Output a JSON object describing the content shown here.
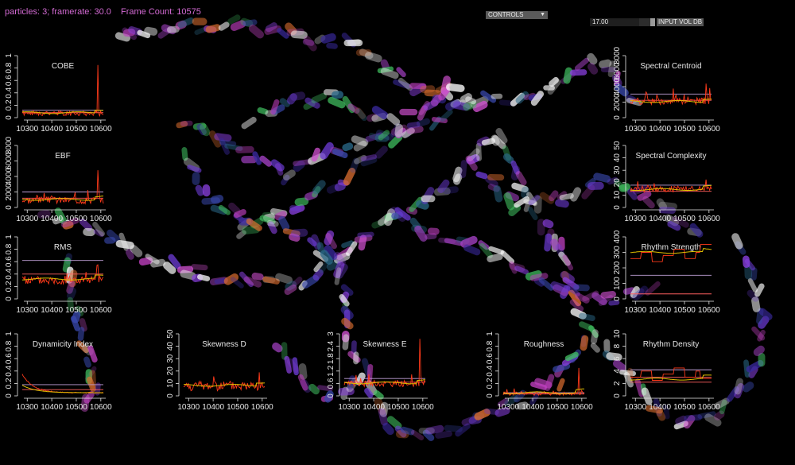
{
  "hud": {
    "particles": "particles: 3; framerate: 30.0",
    "frame_count": "Frame Count: 10575"
  },
  "controls": {
    "label": "CONTROLS"
  },
  "input_vol": {
    "value": "17.00",
    "label": "INPUT VOL DB",
    "level": 0.75
  },
  "colors": {
    "signal": "#ff3a1a",
    "smooth": "#e0c000",
    "threshold_a": "#c0a0d8",
    "threshold_b": "#ff6060",
    "axis": "#e8e8e8",
    "hud_text": "#d36ad3"
  },
  "plots": [
    {
      "id": "cobe",
      "title": "COBE",
      "x": 35,
      "y": 70,
      "ylim": [
        0,
        1
      ],
      "yticks": [
        "0",
        "0.2",
        "0.4",
        "0.6",
        "0.8",
        "1"
      ],
      "xticks": [
        "10300",
        "10400",
        "10500",
        "10600"
      ],
      "xrange": [
        10270,
        10620
      ],
      "lines": [
        0.12,
        0.08
      ],
      "base": 0.07,
      "noise": 0.04,
      "spike": 0.85,
      "smooth_base": 0.08,
      "seed": 1
    },
    {
      "id": "spectral-centroid",
      "title": "Spectral Centroid",
      "x": 800,
      "y": 70,
      "ylim": [
        0,
        8000
      ],
      "yticks": [
        "0",
        "2000",
        "4000",
        "6000",
        "8000"
      ],
      "xticks": [
        "10300",
        "10400",
        "10500",
        "10600"
      ],
      "xrange": [
        10270,
        10620
      ],
      "lines": [
        0.38,
        0.28
      ],
      "base": 0.27,
      "noise": 0.06,
      "spike": 0.55,
      "smooth_base": 0.26,
      "seed": 2
    },
    {
      "id": "ebf",
      "title": "EBF",
      "x": 35,
      "y": 183,
      "ylim": [
        0,
        8000
      ],
      "yticks": [
        "0",
        "2000",
        "4000",
        "6000",
        "8000"
      ],
      "xticks": [
        "10300",
        "10400",
        "10500",
        "10600"
      ],
      "xrange": [
        10270,
        10620
      ],
      "lines": [
        0.25,
        0.15
      ],
      "base": 0.12,
      "noise": 0.06,
      "spike": 0.6,
      "smooth_base": 0.13,
      "seed": 3
    },
    {
      "id": "spectral-complexity",
      "title": "Spectral Complexity",
      "x": 800,
      "y": 183,
      "ylim": [
        0,
        50
      ],
      "yticks": [
        "0",
        "10",
        "20",
        "30",
        "40",
        "50"
      ],
      "xticks": [
        "10300",
        "10400",
        "10500",
        "10600"
      ],
      "xrange": [
        10270,
        10620
      ],
      "lines": [
        0.36,
        0.26
      ],
      "base": 0.3,
      "noise": 0.05,
      "spike": 0.45,
      "smooth_base": 0.29,
      "seed": 4
    },
    {
      "id": "rms",
      "title": "RMS",
      "x": 35,
      "y": 298,
      "ylim": [
        0,
        1
      ],
      "yticks": [
        "0",
        "0.2",
        "0.4",
        "0.6",
        "0.8",
        "1"
      ],
      "xticks": [
        "10300",
        "10400",
        "10500",
        "10600"
      ],
      "xrange": [
        10270,
        10620
      ],
      "lines": [
        0.62,
        0.4
      ],
      "base": 0.3,
      "noise": 0.07,
      "spike": 0.55,
      "smooth_base": 0.32,
      "seed": 5
    },
    {
      "id": "rhythm-strength",
      "title": "Rhythm Strength",
      "x": 800,
      "y": 298,
      "ylim": [
        0,
        400
      ],
      "yticks": [
        "0",
        "100",
        "200",
        "300",
        "400"
      ],
      "xticks": [
        "10300",
        "10400",
        "10500",
        "10600"
      ],
      "xrange": [
        10270,
        10620
      ],
      "lines": [
        0.38,
        0.08
      ],
      "base": 0.6,
      "noise": 0.0,
      "spike": 0.88,
      "smooth_base": 0.75,
      "seed": 6,
      "step": true
    },
    {
      "id": "dynamicity-index",
      "title": "Dynamicity Index",
      "x": 35,
      "y": 420,
      "ylim": [
        0,
        1
      ],
      "yticks": [
        "0",
        "0.2",
        "0.4",
        "0.6",
        "0.8",
        "1"
      ],
      "xticks": [
        "10300",
        "10400",
        "10500",
        "10600"
      ],
      "xrange": [
        10270,
        10620
      ],
      "lines": [
        0.18,
        0.1
      ],
      "base": 0.05,
      "noise": 0.015,
      "spike": 0.3,
      "smooth_base": 0.05,
      "seed": 7,
      "decay": true
    },
    {
      "id": "skewness-d",
      "title": "Skewness D",
      "x": 238,
      "y": 420,
      "ylim": [
        0,
        50
      ],
      "yticks": [
        "0",
        "10",
        "20",
        "30",
        "40",
        "50"
      ],
      "xticks": [
        "10300",
        "10400",
        "10500",
        "10600"
      ],
      "xrange": [
        10270,
        10620
      ],
      "lines": [],
      "base": 0.16,
      "noise": 0.08,
      "spike": 0.38,
      "smooth_base": 0.17,
      "seed": 8
    },
    {
      "id": "skewness-e",
      "title": "Skewness E",
      "x": 440,
      "y": 420,
      "ylim": [
        0,
        3
      ],
      "yticks": [
        "0",
        "0.6",
        "1.2",
        "1.8",
        "2.4",
        "3"
      ],
      "xticks": [
        "10300",
        "10400",
        "10500",
        "10600"
      ],
      "xrange": [
        10270,
        10620
      ],
      "lines": [
        0.28,
        0.22
      ],
      "base": 0.2,
      "noise": 0.05,
      "spike": 0.92,
      "smooth_base": 0.21,
      "seed": 9
    },
    {
      "id": "roughness",
      "title": "Roughness",
      "x": 640,
      "y": 420,
      "ylim": [
        0,
        1
      ],
      "yticks": [
        "0",
        "0.2",
        "0.4",
        "0.6",
        "0.8",
        "1"
      ],
      "xticks": [
        "10300",
        "10400",
        "10500",
        "10600"
      ],
      "xrange": [
        10270,
        10620
      ],
      "lines": [
        0.05,
        0.03
      ],
      "base": 0.04,
      "noise": 0.03,
      "spike": 0.45,
      "smooth_base": 0.05,
      "seed": 10
    },
    {
      "id": "rhythm-density",
      "title": "Rhythm Density",
      "x": 800,
      "y": 420,
      "ylim": [
        0,
        10
      ],
      "yticks": [
        "0",
        "2",
        "4",
        "6",
        "8",
        "10"
      ],
      "xticks": [
        "10300",
        "10400",
        "10500",
        "10600"
      ],
      "xrange": [
        10270,
        10620
      ],
      "lines": [
        0.42,
        0.3,
        0.22
      ],
      "base": 0.25,
      "noise": 0.0,
      "spike": 0.28,
      "smooth_base": 0.27,
      "seed": 11,
      "step": true
    }
  ]
}
